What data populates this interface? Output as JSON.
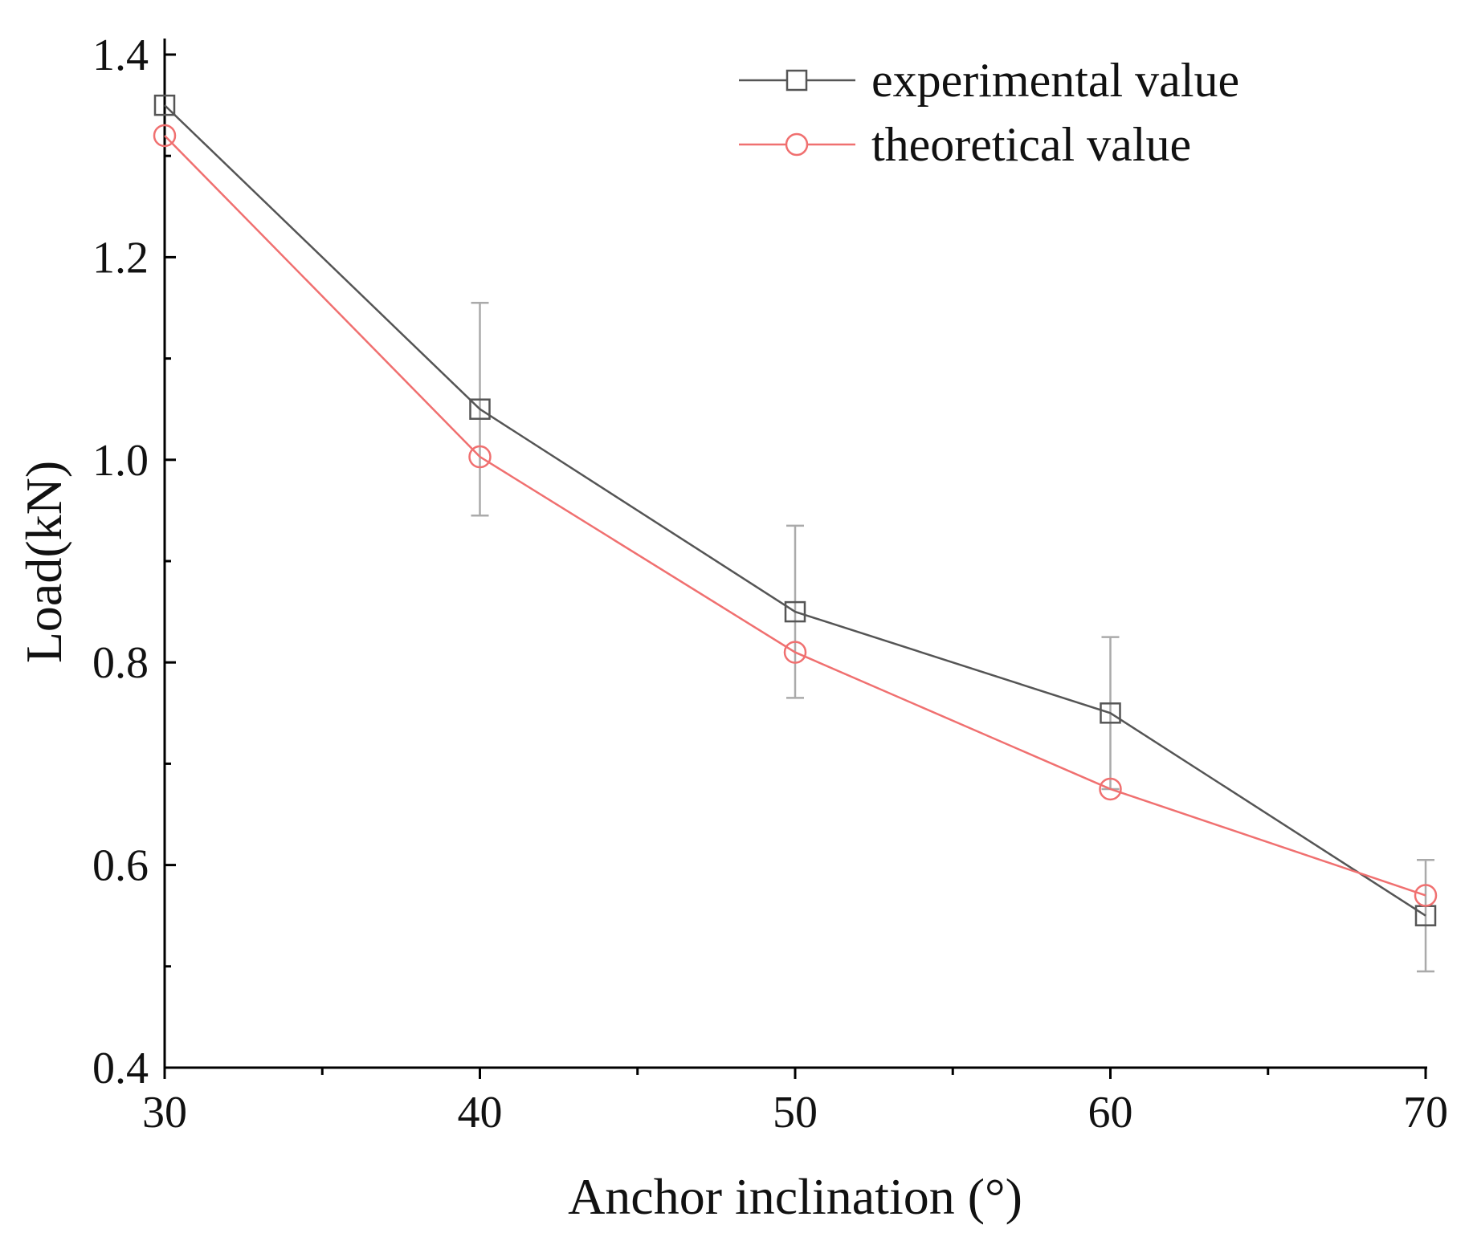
{
  "colors": {
    "experimental": "#555555",
    "theoretical": "#f07070",
    "errorbar": "#aaaaaa",
    "axis": "#000000"
  },
  "chart_data": {
    "type": "line",
    "title": "",
    "xlabel": "Anchor inclination (°)",
    "ylabel": "Load(kN)",
    "xlim": [
      30,
      70
    ],
    "ylim": [
      0.4,
      1.4
    ],
    "x_ticks": [
      30,
      40,
      50,
      60,
      70
    ],
    "x_tick_labels": [
      "30",
      "40",
      "50",
      "60",
      "70"
    ],
    "x_minor_ticks": [
      35,
      45,
      55,
      65
    ],
    "y_ticks": [
      0.4,
      0.6,
      0.8,
      1.0,
      1.2,
      1.4
    ],
    "y_tick_labels": [
      "0.4",
      "0.6",
      "0.8",
      "1.0",
      "1.2",
      "1.4"
    ],
    "y_minor_ticks": [
      0.5,
      0.7,
      0.9,
      1.1,
      1.3
    ],
    "legend_position": "top-right",
    "x": [
      30,
      40,
      50,
      60,
      70
    ],
    "series": [
      {
        "name": "experimental value",
        "marker": "square",
        "values": [
          1.35,
          1.05,
          0.85,
          0.75,
          0.55
        ],
        "error_upper": [
          1.35,
          1.155,
          0.935,
          0.825,
          0.605
        ],
        "error_lower": [
          1.35,
          0.945,
          0.765,
          0.675,
          0.495
        ]
      },
      {
        "name": "theoretical value",
        "marker": "circle",
        "values": [
          1.32,
          1.003,
          0.81,
          0.675,
          0.57
        ]
      }
    ]
  }
}
